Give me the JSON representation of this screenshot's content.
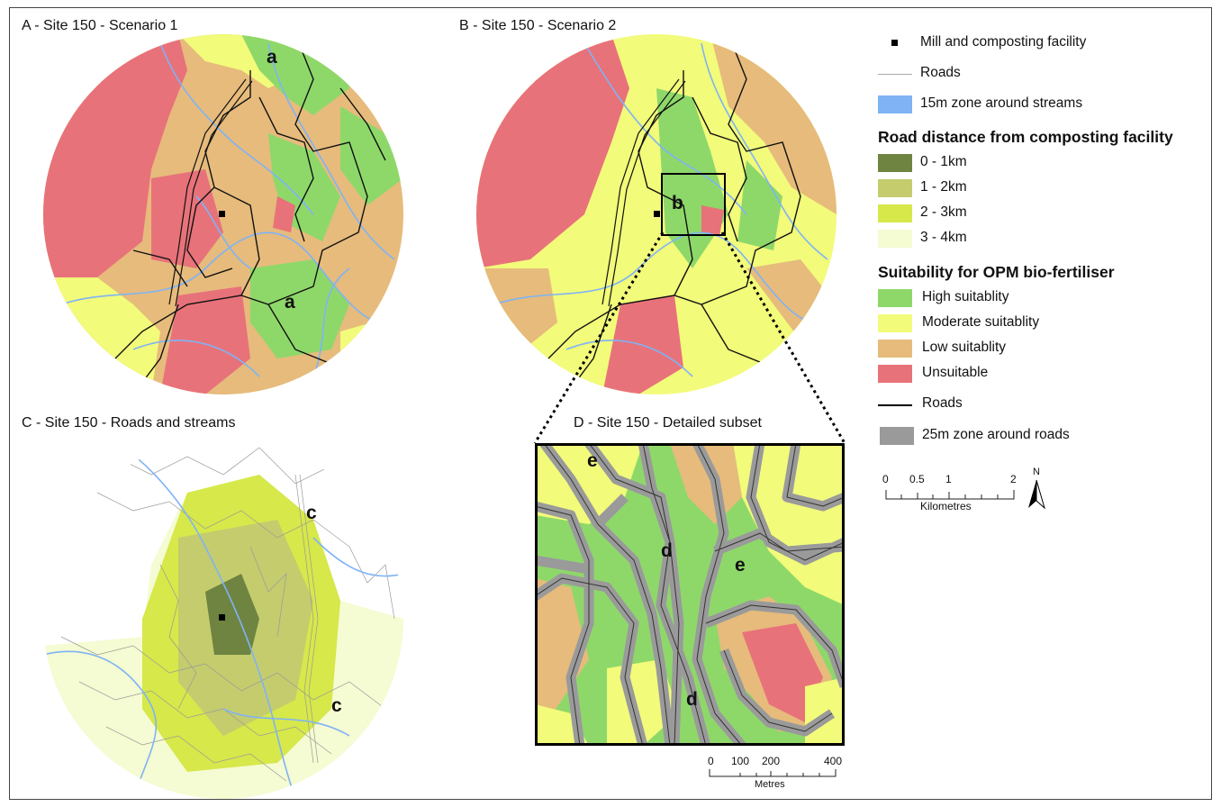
{
  "panels": {
    "a": {
      "title": "A - Site 150 - Scenario 1",
      "labels": [
        "a",
        "a"
      ]
    },
    "b": {
      "title": "B -  Site 150 - Scenario 2",
      "labels": [
        "b"
      ]
    },
    "c": {
      "title": "C - Site 150 - Roads and streams",
      "labels": [
        "c",
        "c"
      ]
    },
    "d": {
      "title": "D - Site 150 - Detailed subset",
      "labels": [
        "e",
        "d",
        "e",
        "d"
      ]
    }
  },
  "legend": {
    "mill": "Mill and composting facility",
    "roads_thin": "Roads",
    "streams_zone": "15m zone around streams",
    "distance_title": "Road distance from composting facility",
    "distance": [
      {
        "label": "0 - 1km",
        "color": "#6e8440"
      },
      {
        "label": "1 - 2km",
        "color": "#c4cc6e"
      },
      {
        "label": "2 - 3km",
        "color": "#d6e84a"
      },
      {
        "label": "3 - 4km",
        "color": "#f5fbd2"
      }
    ],
    "suit_title": "Suitability for OPM bio-fertiliser",
    "suitability": [
      {
        "label": "High suitablity",
        "color": "#8ed86a"
      },
      {
        "label": "Moderate suitablity",
        "color": "#f2fb7a"
      },
      {
        "label": "Low suitablity",
        "color": "#e6bb7c"
      },
      {
        "label": "Unsuitable",
        "color": "#e8727a"
      }
    ],
    "roads_thick": "Roads",
    "road_zone": "25m zone around roads",
    "stream_color": "#7fb3f5",
    "road_zone_color": "#9a9a9a"
  },
  "scalebar_km": {
    "ticks": [
      "0",
      "0.5",
      "1",
      "2"
    ],
    "unit": "Kilometres"
  },
  "scalebar_m": {
    "ticks": [
      "0",
      "100",
      "200",
      "400"
    ],
    "unit": "Metres"
  },
  "north": "N"
}
